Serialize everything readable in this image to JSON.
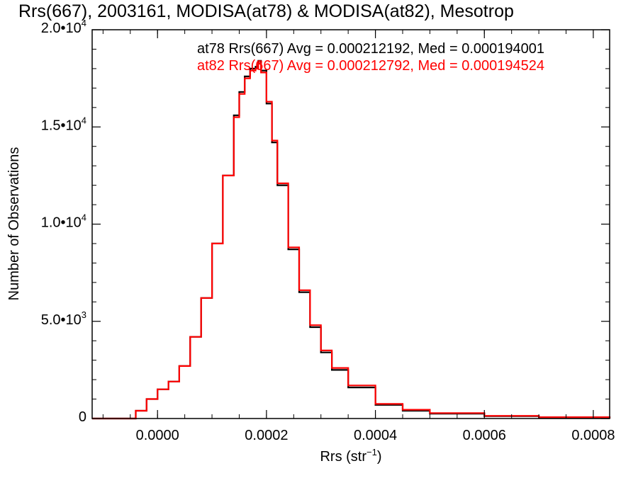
{
  "chart_data": {
    "type": "line",
    "title": "Rrs(667), 2003161, MODISA(at78) & MODISA(at82), Mesotrop",
    "xlabel": "Rrs (str",
    "xlabel_sup": "−1",
    "xlabel_close": ")",
    "ylabel": "Number of Observations",
    "xlim": [
      -0.00012,
      0.00083
    ],
    "ylim": [
      0,
      20000
    ],
    "x_ticks": [
      0.0,
      0.0002,
      0.0004,
      0.0006,
      0.0008
    ],
    "x_tick_labels": [
      "0.0000",
      "0.0002",
      "0.0004",
      "0.0006",
      "0.0008"
    ],
    "y_ticks": [
      0,
      5000,
      10000,
      15000,
      20000
    ],
    "y_tick_labels": [
      {
        "base": "0",
        "sup": ""
      },
      {
        "base": "5.0•10",
        "sup": "3"
      },
      {
        "base": "1.0•10",
        "sup": "4"
      },
      {
        "base": "1.5•10",
        "sup": "4"
      },
      {
        "base": "2.0•10",
        "sup": "4"
      }
    ],
    "grid": false,
    "x": [
      -0.00012,
      -5e-05,
      -4e-05,
      -2e-05,
      0.0,
      2e-05,
      4e-05,
      6e-05,
      8e-05,
      0.0001,
      0.00012,
      0.00014,
      0.00015,
      0.00016,
      0.00017,
      0.00018,
      0.000185,
      0.00019,
      0.0002,
      0.00021,
      0.00022,
      0.00024,
      0.00026,
      0.00028,
      0.0003,
      0.00032,
      0.00035,
      0.0004,
      0.00045,
      0.0005,
      0.0006,
      0.0007,
      0.00083
    ],
    "series": [
      {
        "name": "at78",
        "color": "#000000",
        "annotation": "at78 Rrs(667) Avg = 0.000212192, Med = 0.000194001",
        "values": [
          0,
          0,
          400,
          1000,
          1500,
          1900,
          2700,
          4200,
          6200,
          9000,
          12500,
          15600,
          16800,
          17600,
          18000,
          18100,
          18400,
          17900,
          16200,
          14200,
          12000,
          8700,
          6500,
          4700,
          3400,
          2500,
          1600,
          700,
          400,
          250,
          120,
          60,
          0
        ]
      },
      {
        "name": "at82",
        "color": "#ff0000",
        "annotation": "at82 Rrs(667) Avg = 0.000212792, Med = 0.000194524",
        "values": [
          0,
          0,
          400,
          1000,
          1500,
          1900,
          2700,
          4200,
          6200,
          9000,
          12500,
          15500,
          16700,
          17500,
          17900,
          18000,
          18300,
          17800,
          16300,
          14300,
          12100,
          8800,
          6600,
          4800,
          3500,
          2600,
          1700,
          750,
          450,
          280,
          140,
          70,
          0
        ]
      }
    ]
  }
}
